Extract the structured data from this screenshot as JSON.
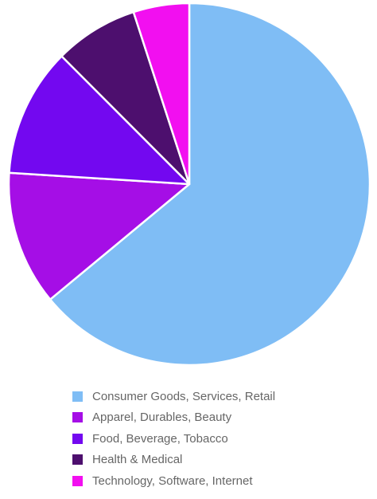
{
  "chart_data": {
    "type": "pie",
    "categories": [
      "Consumer Goods, Services, Retail",
      "Apparel, Durables, Beauty",
      "Food, Beverage, Tobacco",
      "Health & Medical",
      "Technology, Software, Internet"
    ],
    "values": [
      64,
      12,
      11.5,
      7.5,
      5
    ],
    "unit": "percent (estimated from slice angles)",
    "start_angle_deg": 0,
    "direction": "clockwise",
    "legend_position": "bottom",
    "colors": [
      "#7fbdf5",
      "#a50ee6",
      "#7308f0",
      "#4d0f6e",
      "#f20ff0"
    ],
    "slice_border_color": "#ffffff"
  },
  "legend": {
    "items": [
      {
        "label": "Consumer Goods, Services, Retail",
        "color": "#7fbdf5"
      },
      {
        "label": "Apparel, Durables, Beauty",
        "color": "#a50ee6"
      },
      {
        "label": "Food, Beverage, Tobacco",
        "color": "#7308f0"
      },
      {
        "label": "Health & Medical",
        "color": "#4d0f6e"
      },
      {
        "label": "Technology, Software, Internet",
        "color": "#f20ff0"
      }
    ]
  }
}
